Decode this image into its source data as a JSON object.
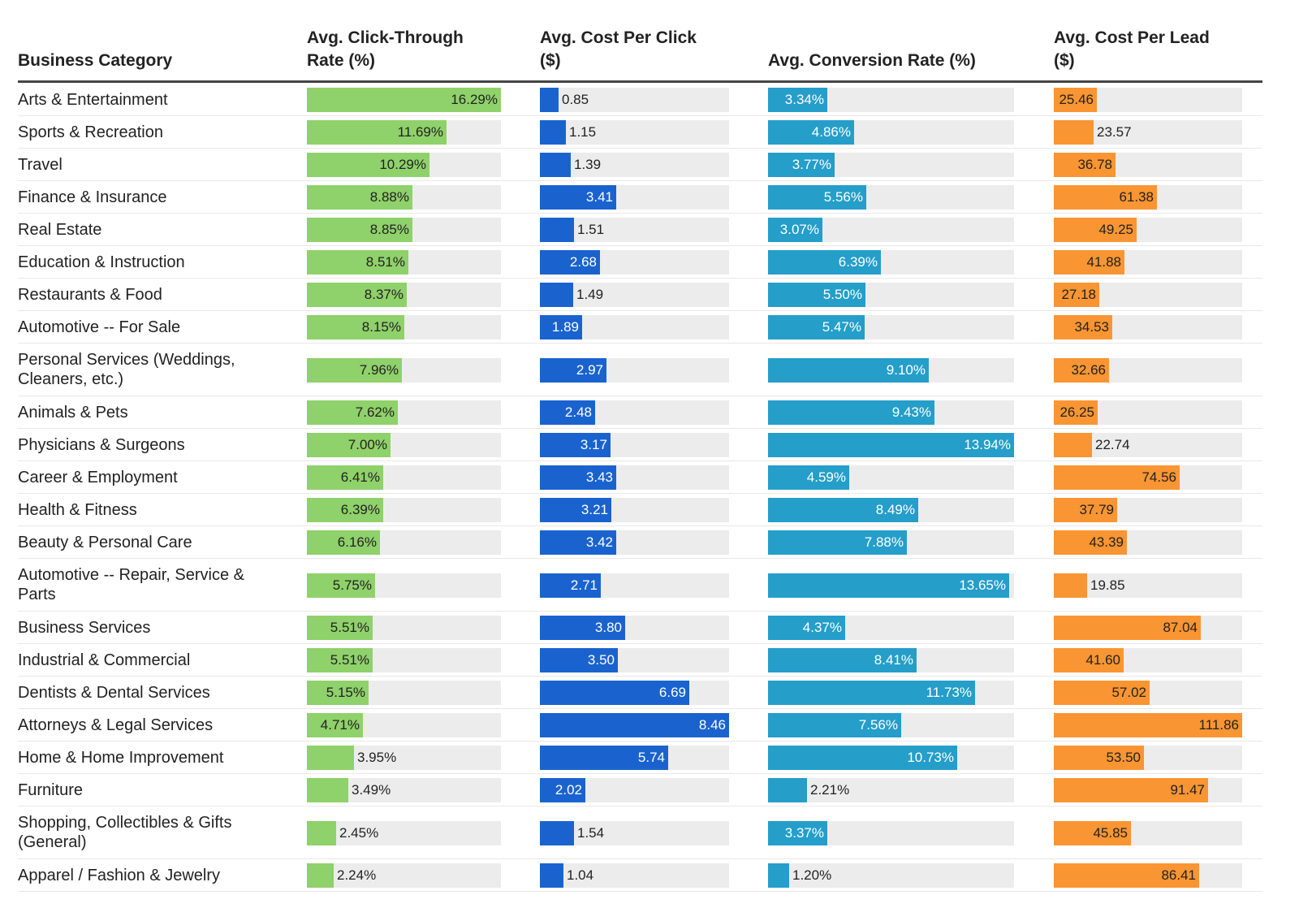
{
  "chart_data": {
    "type": "table",
    "title": "",
    "columns": [
      {
        "key": "category",
        "label_line1": "Business Category",
        "label_line2": ""
      },
      {
        "key": "ctr",
        "label_line1": "Avg. Click-Through",
        "label_line2": "Rate (%)",
        "color": "#8fd16a",
        "text_color": "#222222",
        "max": 16.29,
        "suffix": "%"
      },
      {
        "key": "cpc",
        "label_line1": "Avg. Cost Per Click",
        "label_line2": "($)",
        "color": "#1a63cf",
        "text_color": "#ffffff",
        "max": 8.46,
        "suffix": ""
      },
      {
        "key": "cr",
        "label_line1": "",
        "label_line2": "Avg. Conversion Rate (%)",
        "color": "#259ec9",
        "text_color": "#ffffff",
        "max": 13.94,
        "suffix": "%"
      },
      {
        "key": "cpl",
        "label_line1": "Avg. Cost Per Lead",
        "label_line2": "($)",
        "color": "#f99532",
        "text_color": "#222222",
        "max": 111.86,
        "suffix": ""
      }
    ],
    "rows": [
      {
        "category": "Arts & Entertainment",
        "ctr": "16.29",
        "cpc": "0.85",
        "cr": "3.34",
        "cpl": "25.46"
      },
      {
        "category": "Sports & Recreation",
        "ctr": "11.69",
        "cpc": "1.15",
        "cr": "4.86",
        "cpl": "23.57"
      },
      {
        "category": "Travel",
        "ctr": "10.29",
        "cpc": "1.39",
        "cr": "3.77",
        "cpl": "36.78"
      },
      {
        "category": "Finance & Insurance",
        "ctr": "8.88",
        "cpc": "3.41",
        "cr": "5.56",
        "cpl": "61.38"
      },
      {
        "category": "Real Estate",
        "ctr": "8.85",
        "cpc": "1.51",
        "cr": "3.07",
        "cpl": "49.25"
      },
      {
        "category": "Education & Instruction",
        "ctr": "8.51",
        "cpc": "2.68",
        "cr": "6.39",
        "cpl": "41.88"
      },
      {
        "category": "Restaurants & Food",
        "ctr": "8.37",
        "cpc": "1.49",
        "cr": "5.50",
        "cpl": "27.18"
      },
      {
        "category": "Automotive -- For Sale",
        "ctr": "8.15",
        "cpc": "1.89",
        "cr": "5.47",
        "cpl": "34.53"
      },
      {
        "category": "Personal Services (Weddings, Cleaners, etc.)",
        "ctr": "7.96",
        "cpc": "2.97",
        "cr": "9.10",
        "cpl": "32.66"
      },
      {
        "category": "Animals & Pets",
        "ctr": "7.62",
        "cpc": "2.48",
        "cr": "9.43",
        "cpl": "26.25"
      },
      {
        "category": "Physicians & Surgeons",
        "ctr": "7.00",
        "cpc": "3.17",
        "cr": "13.94",
        "cpl": "22.74"
      },
      {
        "category": "Career & Employment",
        "ctr": "6.41",
        "cpc": "3.43",
        "cr": "4.59",
        "cpl": "74.56"
      },
      {
        "category": "Health & Fitness",
        "ctr": "6.39",
        "cpc": "3.21",
        "cr": "8.49",
        "cpl": "37.79"
      },
      {
        "category": "Beauty & Personal Care",
        "ctr": "6.16",
        "cpc": "3.42",
        "cr": "7.88",
        "cpl": "43.39"
      },
      {
        "category": "Automotive -- Repair, Service & Parts",
        "ctr": "5.75",
        "cpc": "2.71",
        "cr": "13.65",
        "cpl": "19.85"
      },
      {
        "category": "Business Services",
        "ctr": "5.51",
        "cpc": "3.80",
        "cr": "4.37",
        "cpl": "87.04"
      },
      {
        "category": "Industrial & Commercial",
        "ctr": "5.51",
        "cpc": "3.50",
        "cr": "8.41",
        "cpl": "41.60"
      },
      {
        "category": "Dentists & Dental Services",
        "ctr": "5.15",
        "cpc": "6.69",
        "cr": "11.73",
        "cpl": "57.02"
      },
      {
        "category": "Attorneys & Legal Services",
        "ctr": "4.71",
        "cpc": "8.46",
        "cr": "7.56",
        "cpl": "111.86"
      },
      {
        "category": "Home & Home Improvement",
        "ctr": "3.95",
        "cpc": "5.74",
        "cr": "10.73",
        "cpl": "53.50"
      },
      {
        "category": "Furniture",
        "ctr": "3.49",
        "cpc": "2.02",
        "cr": "2.21",
        "cpl": "91.47"
      },
      {
        "category": "Shopping, Collectibles & Gifts (General)",
        "ctr": "2.45",
        "cpc": "1.54",
        "cr": "3.37",
        "cpl": "45.85"
      },
      {
        "category": "Apparel / Fashion & Jewelry",
        "ctr": "2.24",
        "cpc": "1.04",
        "cr": "1.20",
        "cpl": "86.41"
      }
    ],
    "track_color": "#ececec"
  }
}
